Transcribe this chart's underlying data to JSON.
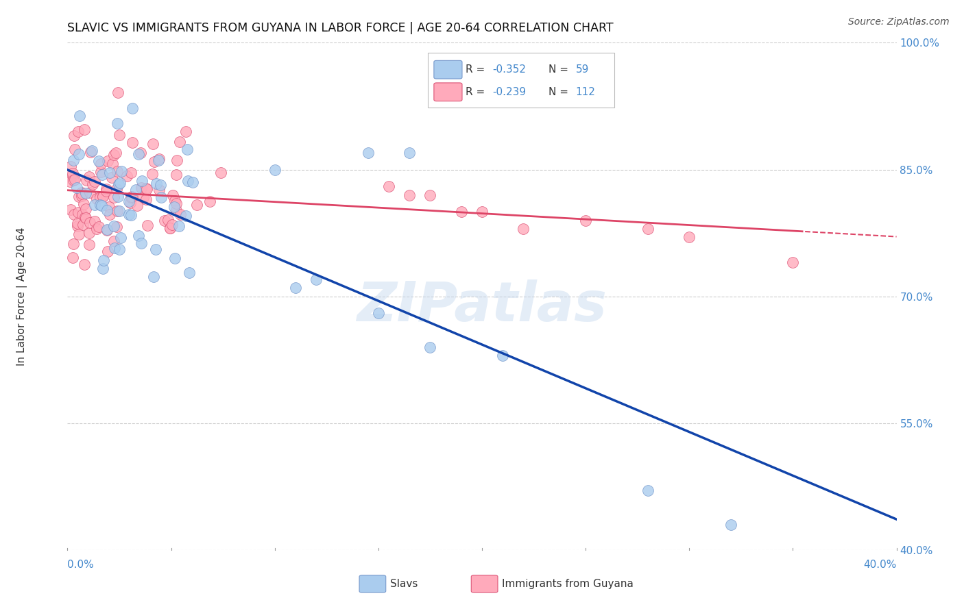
{
  "title": "SLAVIC VS IMMIGRANTS FROM GUYANA IN LABOR FORCE | AGE 20-64 CORRELATION CHART",
  "source": "Source: ZipAtlas.com",
  "ylabel": "In Labor Force | Age 20-64",
  "xlim": [
    0.0,
    0.4
  ],
  "ylim": [
    0.4,
    1.0
  ],
  "ytick_vals": [
    0.4,
    0.55,
    0.7,
    0.85,
    1.0
  ],
  "ytick_labels": [
    "40.0%",
    "55.0%",
    "70.0%",
    "85.0%",
    "100.0%"
  ],
  "grid_color": "#cccccc",
  "bg_color": "#ffffff",
  "watermark": "ZIPatlas",
  "R_slavs": "-0.352",
  "N_slavs": "59",
  "R_guyana": "-0.239",
  "N_guyana": "112",
  "color_blue_face": "#aaccee",
  "color_blue_edge": "#7799cc",
  "color_line_blue": "#1144aa",
  "color_pink_face": "#ffaabb",
  "color_pink_edge": "#dd5577",
  "color_line_pink": "#dd4466",
  "label_slavs": "Slavs",
  "label_guyana": "Immigrants from Guyana",
  "label_color": "#4488cc",
  "axis_label_color": "#333333",
  "title_color": "#111111"
}
